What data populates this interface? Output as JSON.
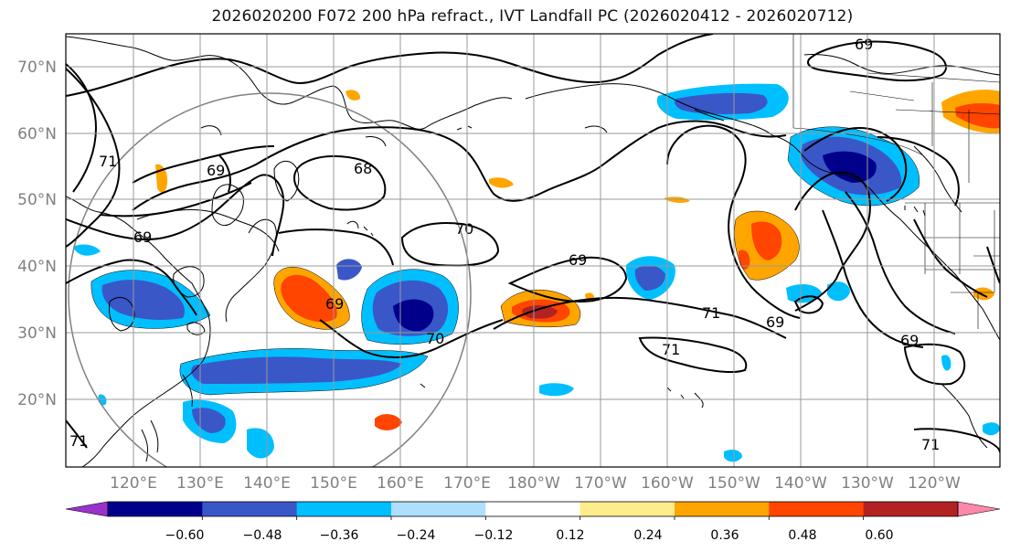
{
  "title": "2026020200 F072 200 hPa refract., IVT Landfall PC (2026020412 - 2026020712)",
  "map": {
    "lat_labels": [
      "70°N",
      "60°N",
      "50°N",
      "40°N",
      "30°N",
      "20°N"
    ],
    "lon_labels": [
      "120°E",
      "130°E",
      "140°E",
      "150°E",
      "160°E",
      "170°E",
      "180°W",
      "170°W",
      "160°W",
      "150°W",
      "140°W",
      "130°W",
      "120°W"
    ],
    "contour_labels": [
      "69",
      "71",
      "69",
      "68",
      "69",
      "70",
      "69",
      "69",
      "71",
      "71",
      "69",
      "69",
      "70",
      "71",
      "71"
    ],
    "tick_label_color": "#808080"
  },
  "colorbar": {
    "colors": [
      "#9932CC",
      "#00008B",
      "#3A57C8",
      "#00BFFF",
      "#ADDFFF",
      "#FFFFFF",
      "#FFEC8B",
      "#FFA500",
      "#FF4500",
      "#B22222",
      "#FF88AA"
    ],
    "tick_labels": [
      "−0.60",
      "−0.48",
      "−0.36",
      "−0.24",
      "−0.12",
      "0.12",
      "0.24",
      "0.36",
      "0.48",
      "0.60"
    ]
  }
}
